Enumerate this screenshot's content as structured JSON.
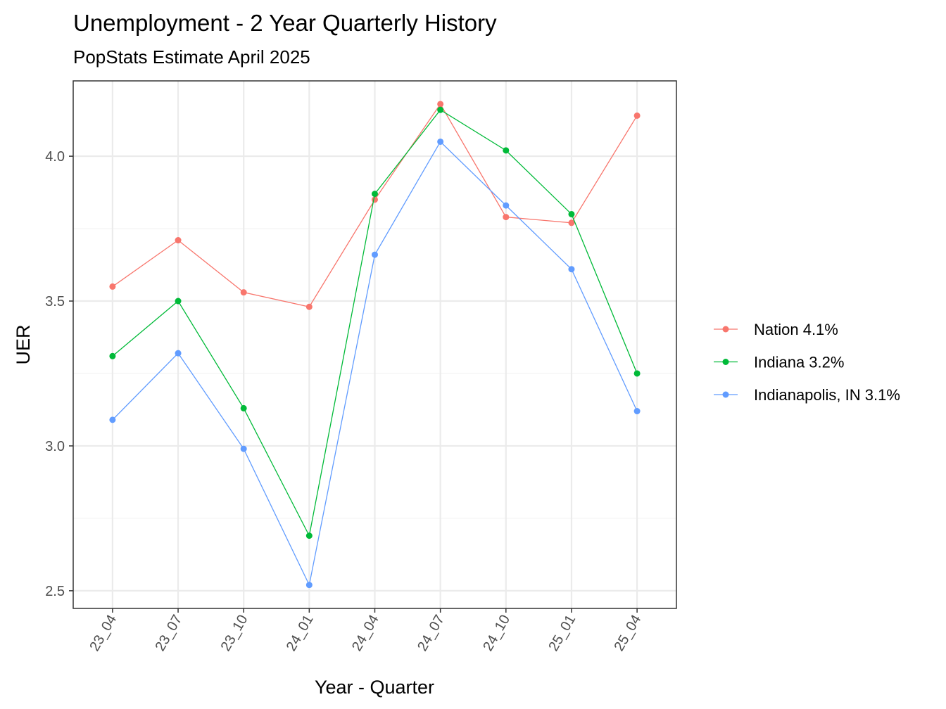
{
  "chart_data": {
    "type": "line",
    "title": "Unemployment - 2 Year Quarterly History",
    "subtitle": "PopStats Estimate April 2025",
    "x_label": "Year - Quarter",
    "y_label": "UER",
    "categories": [
      "23_04",
      "23_07",
      "23_10",
      "24_01",
      "24_04",
      "24_07",
      "24_10",
      "25_01",
      "25_04"
    ],
    "series": [
      {
        "name": "Nation 4.1%",
        "color": "#f8766d",
        "values": [
          3.55,
          3.71,
          3.53,
          3.48,
          3.85,
          4.18,
          3.79,
          3.77,
          4.14
        ]
      },
      {
        "name": "Indiana 3.2%",
        "color": "#00ba38",
        "values": [
          3.31,
          3.5,
          3.13,
          2.69,
          3.87,
          4.16,
          4.02,
          3.8,
          3.25
        ]
      },
      {
        "name": "Indianapolis, IN 3.1%",
        "color": "#619cff",
        "values": [
          3.09,
          3.32,
          2.99,
          2.52,
          3.66,
          4.05,
          3.83,
          3.61,
          3.12
        ]
      }
    ],
    "ylim": [
      2.439,
      4.26
    ],
    "yticks": [
      {
        "value": 2.5,
        "label": "2.5"
      },
      {
        "value": 3,
        "label": "3.0"
      },
      {
        "value": 3.5,
        "label": "3.5"
      },
      {
        "value": 4,
        "label": "4.0"
      }
    ],
    "yticks_minor": [
      2.75,
      3.25,
      3.75
    ],
    "grid": true,
    "legend_position": "right"
  }
}
